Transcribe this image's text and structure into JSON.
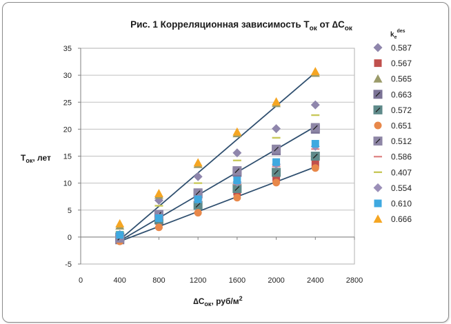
{
  "chart_data": {
    "type": "scatter",
    "title": {
      "prefix": "Рис. 1  Корреляционная зависимость ",
      "t_main": "T",
      "t_sub": "ок",
      "middle": " от ",
      "delta": "∆",
      "c_main": "C",
      "c_sub": "ок"
    },
    "ylabel": {
      "main": "T",
      "sub": "ок",
      "rest": ", лет"
    },
    "xlabel": {
      "delta": "∆",
      "main": "C",
      "sub": "ок",
      "rest": ", руб/м",
      "sup": "2"
    },
    "legend_title": {
      "main": "k",
      "sub": "e",
      "sup": "des"
    },
    "xlim": [
      0,
      2800
    ],
    "ylim": [
      -5,
      35
    ],
    "x_ticks": [
      "0",
      "400",
      "800",
      "1200",
      "1600",
      "2000",
      "2400",
      "2800"
    ],
    "y_ticks": [
      "-5",
      "0",
      "5",
      "10",
      "15",
      "20",
      "25",
      "30",
      "35"
    ],
    "trendlines": [
      {
        "x": [
          400,
          2400
        ],
        "y": [
          -0.5,
          30.5
        ]
      },
      {
        "x": [
          400,
          2400
        ],
        "y": [
          -0.7,
          20.5
        ]
      },
      {
        "x": [
          400,
          2400
        ],
        "y": [
          -0.8,
          13.0
        ]
      }
    ],
    "series": [
      {
        "name": "0.587",
        "marker": "diamond",
        "color": "#8f86ac",
        "x": [
          400,
          800,
          1200,
          1600,
          2000,
          2400
        ],
        "y": [
          0.0,
          6.8,
          11.2,
          15.6,
          20.1,
          24.5
        ]
      },
      {
        "name": "0.567",
        "marker": "square",
        "color": "#c0504d",
        "x": [
          400,
          800,
          1200,
          1600,
          2000,
          2400
        ],
        "y": [
          0.3,
          3.0,
          5.8,
          8.4,
          11.0,
          13.6
        ]
      },
      {
        "name": "0.565",
        "marker": "triangle",
        "color": "#9b9b6a",
        "x": [
          400,
          800,
          1200,
          1600,
          2000,
          2400
        ],
        "y": [
          2.1,
          7.8,
          13.5,
          19.2,
          24.8,
          30.4
        ]
      },
      {
        "name": "0.663",
        "marker": "square-line",
        "color": "#7b7396",
        "x": [
          400,
          800,
          1200,
          1600,
          2000,
          2400
        ],
        "y": [
          -0.5,
          4.0,
          8.0,
          12.0,
          16.0,
          20.0
        ]
      },
      {
        "name": "0.572",
        "marker": "square-line",
        "color": "#5f8a8a",
        "x": [
          400,
          800,
          1200,
          1600,
          2000,
          2400
        ],
        "y": [
          0.0,
          3.2,
          5.9,
          9.0,
          12.0,
          15.0
        ]
      },
      {
        "name": "0.651",
        "marker": "circle",
        "color": "#e8884a",
        "x": [
          400,
          800,
          1200,
          1600,
          2000,
          2400
        ],
        "y": [
          -0.8,
          1.8,
          4.5,
          7.3,
          10.1,
          12.8
        ]
      },
      {
        "name": "0.512",
        "marker": "square-line",
        "color": "#8e86a6",
        "x": [
          400,
          800,
          1200,
          1600,
          2000,
          2400
        ],
        "y": [
          -0.2,
          4.2,
          8.2,
          12.3,
          16.3,
          20.3
        ]
      },
      {
        "name": "0.586",
        "marker": "dash",
        "color": "#e08a8a",
        "x": [
          400,
          800,
          1200,
          1600,
          2000,
          2400
        ],
        "y": [
          0.0,
          3.4,
          6.6,
          9.8,
          13.1,
          16.3
        ]
      },
      {
        "name": "0.407",
        "marker": "dash",
        "color": "#c8c85a",
        "x": [
          400,
          800,
          1200,
          1600,
          2000,
          2400
        ],
        "y": [
          1.0,
          5.8,
          10.0,
          14.2,
          18.4,
          22.6
        ]
      },
      {
        "name": "0.554",
        "marker": "diamond",
        "color": "#9b8fb8",
        "x": [
          400,
          800,
          1200,
          1600,
          2000,
          2400
        ],
        "y": [
          0.5,
          3.6,
          7.0,
          10.2,
          13.5,
          16.8
        ]
      },
      {
        "name": "0.610",
        "marker": "square",
        "color": "#3fa9e0",
        "x": [
          400,
          800,
          1200,
          1600,
          2000,
          2400
        ],
        "y": [
          0.4,
          3.5,
          7.0,
          10.5,
          13.9,
          17.3
        ]
      },
      {
        "name": "0.666",
        "marker": "triangle",
        "color": "#f5a623",
        "x": [
          400,
          800,
          1200,
          1600,
          2000,
          2400
        ],
        "y": [
          2.5,
          8.1,
          13.8,
          19.5,
          25.1,
          30.7
        ]
      }
    ]
  }
}
